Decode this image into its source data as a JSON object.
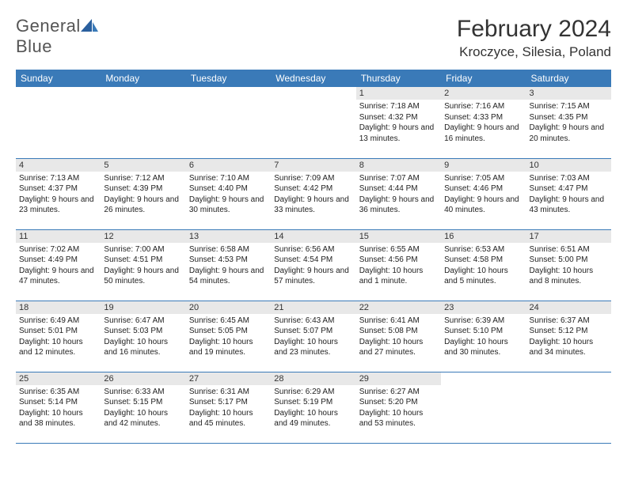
{
  "logo": {
    "text1": "General",
    "text2": "Blue"
  },
  "title": "February 2024",
  "location": "Kroczyce, Silesia, Poland",
  "colors": {
    "header_bg": "#3a7ab8",
    "daynum_bg": "#e8e8e8",
    "border": "#3a7ab8"
  },
  "days_of_week": [
    "Sunday",
    "Monday",
    "Tuesday",
    "Wednesday",
    "Thursday",
    "Friday",
    "Saturday"
  ],
  "weeks": [
    [
      {
        "n": "",
        "sr": "",
        "ss": "",
        "dl": ""
      },
      {
        "n": "",
        "sr": "",
        "ss": "",
        "dl": ""
      },
      {
        "n": "",
        "sr": "",
        "ss": "",
        "dl": ""
      },
      {
        "n": "",
        "sr": "",
        "ss": "",
        "dl": ""
      },
      {
        "n": "1",
        "sr": "Sunrise: 7:18 AM",
        "ss": "Sunset: 4:32 PM",
        "dl": "Daylight: 9 hours and 13 minutes."
      },
      {
        "n": "2",
        "sr": "Sunrise: 7:16 AM",
        "ss": "Sunset: 4:33 PM",
        "dl": "Daylight: 9 hours and 16 minutes."
      },
      {
        "n": "3",
        "sr": "Sunrise: 7:15 AM",
        "ss": "Sunset: 4:35 PM",
        "dl": "Daylight: 9 hours and 20 minutes."
      }
    ],
    [
      {
        "n": "4",
        "sr": "Sunrise: 7:13 AM",
        "ss": "Sunset: 4:37 PM",
        "dl": "Daylight: 9 hours and 23 minutes."
      },
      {
        "n": "5",
        "sr": "Sunrise: 7:12 AM",
        "ss": "Sunset: 4:39 PM",
        "dl": "Daylight: 9 hours and 26 minutes."
      },
      {
        "n": "6",
        "sr": "Sunrise: 7:10 AM",
        "ss": "Sunset: 4:40 PM",
        "dl": "Daylight: 9 hours and 30 minutes."
      },
      {
        "n": "7",
        "sr": "Sunrise: 7:09 AM",
        "ss": "Sunset: 4:42 PM",
        "dl": "Daylight: 9 hours and 33 minutes."
      },
      {
        "n": "8",
        "sr": "Sunrise: 7:07 AM",
        "ss": "Sunset: 4:44 PM",
        "dl": "Daylight: 9 hours and 36 minutes."
      },
      {
        "n": "9",
        "sr": "Sunrise: 7:05 AM",
        "ss": "Sunset: 4:46 PM",
        "dl": "Daylight: 9 hours and 40 minutes."
      },
      {
        "n": "10",
        "sr": "Sunrise: 7:03 AM",
        "ss": "Sunset: 4:47 PM",
        "dl": "Daylight: 9 hours and 43 minutes."
      }
    ],
    [
      {
        "n": "11",
        "sr": "Sunrise: 7:02 AM",
        "ss": "Sunset: 4:49 PM",
        "dl": "Daylight: 9 hours and 47 minutes."
      },
      {
        "n": "12",
        "sr": "Sunrise: 7:00 AM",
        "ss": "Sunset: 4:51 PM",
        "dl": "Daylight: 9 hours and 50 minutes."
      },
      {
        "n": "13",
        "sr": "Sunrise: 6:58 AM",
        "ss": "Sunset: 4:53 PM",
        "dl": "Daylight: 9 hours and 54 minutes."
      },
      {
        "n": "14",
        "sr": "Sunrise: 6:56 AM",
        "ss": "Sunset: 4:54 PM",
        "dl": "Daylight: 9 hours and 57 minutes."
      },
      {
        "n": "15",
        "sr": "Sunrise: 6:55 AM",
        "ss": "Sunset: 4:56 PM",
        "dl": "Daylight: 10 hours and 1 minute."
      },
      {
        "n": "16",
        "sr": "Sunrise: 6:53 AM",
        "ss": "Sunset: 4:58 PM",
        "dl": "Daylight: 10 hours and 5 minutes."
      },
      {
        "n": "17",
        "sr": "Sunrise: 6:51 AM",
        "ss": "Sunset: 5:00 PM",
        "dl": "Daylight: 10 hours and 8 minutes."
      }
    ],
    [
      {
        "n": "18",
        "sr": "Sunrise: 6:49 AM",
        "ss": "Sunset: 5:01 PM",
        "dl": "Daylight: 10 hours and 12 minutes."
      },
      {
        "n": "19",
        "sr": "Sunrise: 6:47 AM",
        "ss": "Sunset: 5:03 PM",
        "dl": "Daylight: 10 hours and 16 minutes."
      },
      {
        "n": "20",
        "sr": "Sunrise: 6:45 AM",
        "ss": "Sunset: 5:05 PM",
        "dl": "Daylight: 10 hours and 19 minutes."
      },
      {
        "n": "21",
        "sr": "Sunrise: 6:43 AM",
        "ss": "Sunset: 5:07 PM",
        "dl": "Daylight: 10 hours and 23 minutes."
      },
      {
        "n": "22",
        "sr": "Sunrise: 6:41 AM",
        "ss": "Sunset: 5:08 PM",
        "dl": "Daylight: 10 hours and 27 minutes."
      },
      {
        "n": "23",
        "sr": "Sunrise: 6:39 AM",
        "ss": "Sunset: 5:10 PM",
        "dl": "Daylight: 10 hours and 30 minutes."
      },
      {
        "n": "24",
        "sr": "Sunrise: 6:37 AM",
        "ss": "Sunset: 5:12 PM",
        "dl": "Daylight: 10 hours and 34 minutes."
      }
    ],
    [
      {
        "n": "25",
        "sr": "Sunrise: 6:35 AM",
        "ss": "Sunset: 5:14 PM",
        "dl": "Daylight: 10 hours and 38 minutes."
      },
      {
        "n": "26",
        "sr": "Sunrise: 6:33 AM",
        "ss": "Sunset: 5:15 PM",
        "dl": "Daylight: 10 hours and 42 minutes."
      },
      {
        "n": "27",
        "sr": "Sunrise: 6:31 AM",
        "ss": "Sunset: 5:17 PM",
        "dl": "Daylight: 10 hours and 45 minutes."
      },
      {
        "n": "28",
        "sr": "Sunrise: 6:29 AM",
        "ss": "Sunset: 5:19 PM",
        "dl": "Daylight: 10 hours and 49 minutes."
      },
      {
        "n": "29",
        "sr": "Sunrise: 6:27 AM",
        "ss": "Sunset: 5:20 PM",
        "dl": "Daylight: 10 hours and 53 minutes."
      },
      {
        "n": "",
        "sr": "",
        "ss": "",
        "dl": ""
      },
      {
        "n": "",
        "sr": "",
        "ss": "",
        "dl": ""
      }
    ]
  ]
}
